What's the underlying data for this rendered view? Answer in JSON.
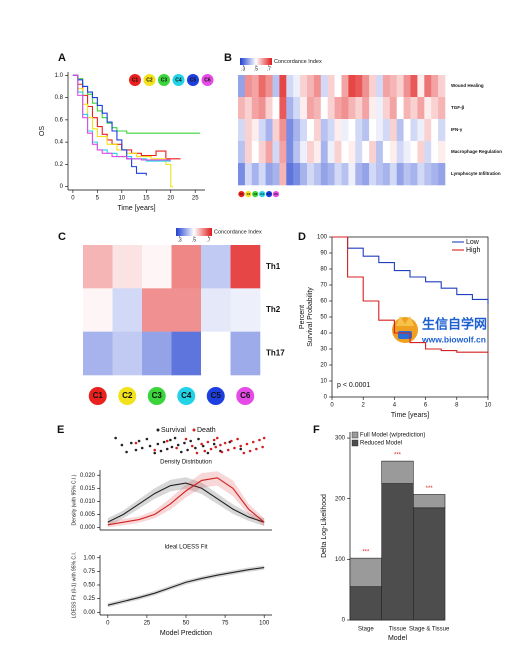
{
  "chart_data": [
    {
      "panel": "A",
      "type": "line",
      "step": true,
      "xlabel": "Time [years]",
      "ylabel": "OS",
      "xlim": [
        -1,
        27
      ],
      "ylim": [
        -0.03,
        1.03
      ],
      "xticks": [
        0,
        5,
        10,
        15,
        20,
        25
      ],
      "yticks": [
        0,
        0.2,
        0.4,
        0.6,
        0.8,
        {
          "value": 1,
          "label": "1.0"
        }
      ],
      "legend_style": "circle",
      "series": [
        {
          "name": "C1",
          "color": "#e8201e",
          "x": [
            0,
            1,
            2,
            3,
            4,
            5,
            6,
            7,
            8,
            10,
            12,
            14,
            17,
            19,
            22
          ],
          "values": [
            1,
            0.92,
            0.82,
            0.72,
            0.62,
            0.54,
            0.47,
            0.42,
            0.38,
            0.33,
            0.3,
            0.28,
            0.32,
            0.25,
            0.25
          ]
        },
        {
          "name": "C2",
          "color": "#f2e21b",
          "x": [
            0,
            1,
            2,
            3,
            4,
            5,
            7,
            9,
            11,
            13,
            16,
            19,
            20,
            20.5
          ],
          "values": [
            1,
            0.88,
            0.74,
            0.62,
            0.52,
            0.45,
            0.38,
            0.33,
            0.3,
            0.27,
            0.25,
            0.2,
            0.0,
            0.0
          ]
        },
        {
          "name": "C3",
          "color": "#3bd43b",
          "x": [
            0,
            1,
            2,
            3,
            4,
            5,
            6,
            7,
            8,
            9,
            11,
            14,
            26
          ],
          "values": [
            1,
            0.97,
            0.9,
            0.83,
            0.75,
            0.68,
            0.62,
            0.57,
            0.53,
            0.5,
            0.48,
            0.48,
            0.48
          ]
        },
        {
          "name": "C4",
          "color": "#22d3e6",
          "x": [
            0,
            1,
            2,
            3,
            4,
            5,
            7,
            9,
            12,
            15,
            20
          ],
          "values": [
            1,
            0.85,
            0.65,
            0.5,
            0.4,
            0.33,
            0.3,
            0.27,
            0.25,
            0.23,
            0.23
          ]
        },
        {
          "name": "C5",
          "color": "#1d3fe0",
          "x": [
            0,
            1,
            2,
            3,
            4,
            5,
            6,
            7,
            8,
            9,
            10,
            11,
            12,
            13,
            15
          ],
          "values": [
            1,
            0.96,
            0.9,
            0.85,
            0.8,
            0.73,
            0.66,
            0.58,
            0.5,
            0.42,
            0.33,
            0.25,
            0.18,
            0.12,
            0.1
          ]
        },
        {
          "name": "C6",
          "color": "#e64ae6",
          "x": [
            0,
            1,
            2,
            3,
            4,
            5,
            6,
            8,
            11,
            14,
            20
          ],
          "values": [
            1,
            0.82,
            0.62,
            0.48,
            0.38,
            0.33,
            0.3,
            0.27,
            0.25,
            0.24,
            0.24
          ]
        }
      ]
    },
    {
      "panel": "B",
      "type": "heatmap",
      "rows": [
        "Wound Healing",
        "TGF-β",
        "IFN-γ",
        "Macrophage Regulation",
        "Lymphocyte Infiltration"
      ],
      "categories": [
        "C1",
        "C2",
        "C3",
        "C4",
        "C5",
        "C6",
        null,
        null,
        null,
        null,
        null,
        null,
        null,
        null,
        null,
        null,
        null,
        null,
        null,
        null,
        null,
        null,
        null,
        null,
        null,
        null,
        null,
        null,
        null,
        null
      ],
      "category_colors": [
        "#e8201e",
        "#f2e21b",
        "#3bd43b",
        "#22d3e6",
        "#1d3fe0",
        "#e64ae6"
      ],
      "values": [
        [
          0.38,
          0.62,
          0.6,
          0.66,
          0.62,
          0.42,
          0.7,
          0.45,
          0.48,
          0.55,
          0.58,
          0.62,
          0.45,
          0.55,
          0.5,
          0.6,
          0.7,
          0.68,
          0.62,
          0.55,
          0.45,
          0.6,
          0.58,
          0.55,
          0.62,
          0.68,
          0.52,
          0.65,
          0.6,
          0.55
        ],
        [
          0.58,
          0.55,
          0.6,
          0.62,
          0.55,
          0.5,
          0.68,
          0.4,
          0.45,
          0.52,
          0.6,
          0.58,
          0.5,
          0.55,
          0.6,
          0.62,
          0.58,
          0.55,
          0.6,
          0.52,
          0.48,
          0.55,
          0.6,
          0.5,
          0.58,
          0.55,
          0.6,
          0.52,
          0.55,
          0.58
        ],
        [
          0.45,
          0.55,
          0.52,
          0.45,
          0.4,
          0.55,
          0.62,
          0.35,
          0.4,
          0.45,
          0.5,
          0.55,
          0.42,
          0.45,
          0.52,
          0.48,
          0.5,
          0.45,
          0.42,
          0.5,
          0.48,
          0.45,
          0.55,
          0.42,
          0.5,
          0.45,
          0.48,
          0.55,
          0.5,
          0.45
        ],
        [
          0.42,
          0.55,
          0.5,
          0.55,
          0.6,
          0.45,
          0.6,
          0.35,
          0.42,
          0.48,
          0.55,
          0.52,
          0.4,
          0.48,
          0.55,
          0.5,
          0.52,
          0.45,
          0.5,
          0.55,
          0.42,
          0.5,
          0.52,
          0.45,
          0.48,
          0.5,
          0.55,
          0.45,
          0.5,
          0.52
        ],
        [
          0.35,
          0.45,
          0.4,
          0.45,
          0.38,
          0.4,
          0.58,
          0.32,
          0.35,
          0.4,
          0.45,
          0.42,
          0.38,
          0.4,
          0.45,
          0.42,
          0.48,
          0.4,
          0.38,
          0.45,
          0.42,
          0.4,
          0.45,
          0.38,
          0.42,
          0.4,
          0.45,
          0.42,
          0.4,
          0.38
        ]
      ],
      "colorbar": {
        "title": "Concordance Index",
        "clim": [
          0.25,
          0.75
        ],
        "ticks": [
          {
            "value": 0.3,
            "label": ".3"
          },
          {
            "value": 0.5,
            "label": ".5"
          },
          {
            "value": 0.7,
            "label": ".7"
          }
        ]
      }
    },
    {
      "panel": "C",
      "type": "heatmap",
      "rows": [
        "Th1",
        "Th2",
        "Th17"
      ],
      "categories": [
        "C1",
        "C2",
        "C3",
        "C4",
        "C5",
        "C6"
      ],
      "category_colors": [
        "#e8201e",
        "#f2e21b",
        "#3bd43b",
        "#22d3e6",
        "#1d3fe0",
        "#e64ae6"
      ],
      "values": [
        [
          0.58,
          0.53,
          0.51,
          0.63,
          0.43,
          0.7
        ],
        [
          0.51,
          0.45,
          0.62,
          0.62,
          0.47,
          0.48
        ],
        [
          0.4,
          0.43,
          0.38,
          0.32,
          0.5,
          0.39
        ]
      ],
      "colorbar": {
        "title": "Concordance Index",
        "clim": [
          0.25,
          0.75
        ],
        "ticks": [
          {
            "value": 0.3,
            "label": ".3"
          },
          {
            "value": 0.5,
            "label": ".5"
          },
          {
            "value": 0.7,
            "label": ".7"
          }
        ]
      }
    },
    {
      "panel": "D",
      "type": "line",
      "step": true,
      "xlabel": "Time [years]",
      "ylabel": [
        "Percent",
        "Survival Probability"
      ],
      "xlim": [
        0,
        10
      ],
      "ylim": [
        0,
        100
      ],
      "xticks": [
        0,
        2,
        4,
        6,
        8,
        10
      ],
      "yticks": [
        0,
        10,
        20,
        30,
        40,
        50,
        60,
        70,
        80,
        90,
        100
      ],
      "legend_style": "line",
      "annotation": "p < 0.0001",
      "frame": true,
      "series": [
        {
          "name": "Low",
          "color": "#1f3fbf",
          "x": [
            0,
            1,
            2,
            3,
            4,
            5,
            6,
            7,
            8,
            9,
            10
          ],
          "values": [
            100,
            93,
            88,
            84,
            79,
            75,
            72,
            68,
            64,
            61,
            58
          ]
        },
        {
          "name": "High",
          "color": "#d42020",
          "x": [
            0,
            1,
            2,
            3,
            4,
            5,
            6,
            7,
            8,
            9,
            10
          ],
          "values": [
            100,
            75,
            60,
            48,
            40,
            34,
            30,
            29,
            28,
            28,
            27
          ]
        }
      ]
    },
    {
      "panel": "E",
      "type": "line",
      "title": "Density Distribution",
      "ylabel": "Density (with 95% C.I.)",
      "xlim": [
        -5,
        105
      ],
      "ylim": [
        -0.001,
        0.022
      ],
      "yticks": [
        {
          "value": 0,
          "label": "0.000"
        },
        {
          "value": 0.005,
          "label": "0.005"
        },
        {
          "value": 0.01,
          "label": "0.010"
        },
        {
          "value": 0.015,
          "label": "0.015"
        },
        {
          "value": 0.02,
          "label": "0.020"
        }
      ],
      "legend_style": "bullet",
      "series": [
        {
          "name": "Survival",
          "color": "#222222",
          "x": [
            0,
            10,
            20,
            30,
            40,
            50,
            60,
            70,
            80,
            90,
            100
          ],
          "values": [
            0.002,
            0.005,
            0.009,
            0.013,
            0.016,
            0.017,
            0.015,
            0.011,
            0.007,
            0.004,
            0.002
          ],
          "lower": [
            0.0005,
            0.0035,
            0.0072,
            0.011,
            0.0138,
            0.0148,
            0.0128,
            0.009,
            0.0052,
            0.0025,
            0.0005
          ],
          "upper": [
            0.0035,
            0.0065,
            0.0108,
            0.015,
            0.0182,
            0.0192,
            0.0172,
            0.013,
            0.0088,
            0.0055,
            0.0035
          ],
          "strip": [
            5,
            9,
            12,
            15,
            18,
            20,
            22,
            25,
            27,
            30,
            32,
            34,
            36,
            38,
            40,
            41,
            43,
            45,
            47,
            49,
            51,
            53,
            56,
            58,
            61,
            64,
            68,
            72,
            78,
            85
          ]
        },
        {
          "name": "Death",
          "color": "#d42020",
          "x": [
            0,
            10,
            20,
            30,
            40,
            50,
            60,
            70,
            80,
            90,
            100
          ],
          "values": [
            0.001,
            0.002,
            0.003,
            0.005,
            0.009,
            0.014,
            0.018,
            0.019,
            0.015,
            0.007,
            0.002
          ],
          "lower": [
            0,
            0.0008,
            0.0018,
            0.0035,
            0.0068,
            0.0115,
            0.0152,
            0.016,
            0.012,
            0.005,
            0.0005
          ],
          "upper": [
            0.002,
            0.0032,
            0.0042,
            0.0065,
            0.0112,
            0.0165,
            0.0208,
            0.0215,
            0.018,
            0.009,
            0.0035
          ],
          "strip": [
            18,
            30,
            38,
            44,
            50,
            54,
            57,
            60,
            62,
            64,
            66,
            68,
            69,
            70,
            72,
            73,
            75,
            77,
            79,
            81,
            83,
            85,
            87,
            89,
            91,
            93,
            95,
            97,
            99,
            100
          ]
        }
      ]
    },
    {
      "type": "line",
      "title": "Ideal LOESS Fit",
      "xlabel": "Model Prediction",
      "ylabel": "LOESS Fit (0-1) with 95% C.I.",
      "xlim": [
        -5,
        105
      ],
      "ylim": [
        -0.05,
        1.05
      ],
      "xticks": [
        0,
        25,
        50,
        75,
        100
      ],
      "yticks": [
        {
          "value": 0,
          "label": "0.00"
        },
        {
          "value": 0.25,
          "label": "0.25"
        },
        {
          "value": 0.5,
          "label": "0.50"
        },
        {
          "value": 0.75,
          "label": "0.75"
        },
        {
          "value": 1,
          "label": "1.00"
        }
      ],
      "series": [
        {
          "color": "#222222",
          "x": [
            0,
            10,
            20,
            30,
            40,
            50,
            60,
            70,
            80,
            90,
            100
          ],
          "values": [
            0.13,
            0.2,
            0.27,
            0.35,
            0.45,
            0.55,
            0.62,
            0.68,
            0.73,
            0.78,
            0.82
          ],
          "lower": [
            0.09,
            0.16,
            0.23,
            0.31,
            0.41,
            0.51,
            0.58,
            0.64,
            0.69,
            0.74,
            0.78
          ],
          "upper": [
            0.17,
            0.24,
            0.31,
            0.39,
            0.49,
            0.59,
            0.66,
            0.72,
            0.77,
            0.82,
            0.86
          ]
        }
      ]
    },
    {
      "panel": "F",
      "type": "bar",
      "stacked": true,
      "xlabel": "Model",
      "ylabel": "Delta Log-Likelihood",
      "categories": [
        "Stage",
        "Tissue",
        "Stage & Tissue"
      ],
      "ylim": [
        0,
        310
      ],
      "yticks": [
        0,
        100,
        200,
        300
      ],
      "series": [
        {
          "name": "Reduced Model",
          "color": "#4d4d4d",
          "values": [
            55,
            225,
            185
          ]
        },
        {
          "name": "Full Model (w/prediction)",
          "color": "#9a9a9a",
          "values": [
            47,
            37,
            22
          ]
        }
      ],
      "annotations": [
        "***",
        "***",
        "***"
      ],
      "annotation_color": "#e02020"
    }
  ],
  "watermark": {
    "title": "生信自学网",
    "url": "www.biowolf.cn"
  }
}
